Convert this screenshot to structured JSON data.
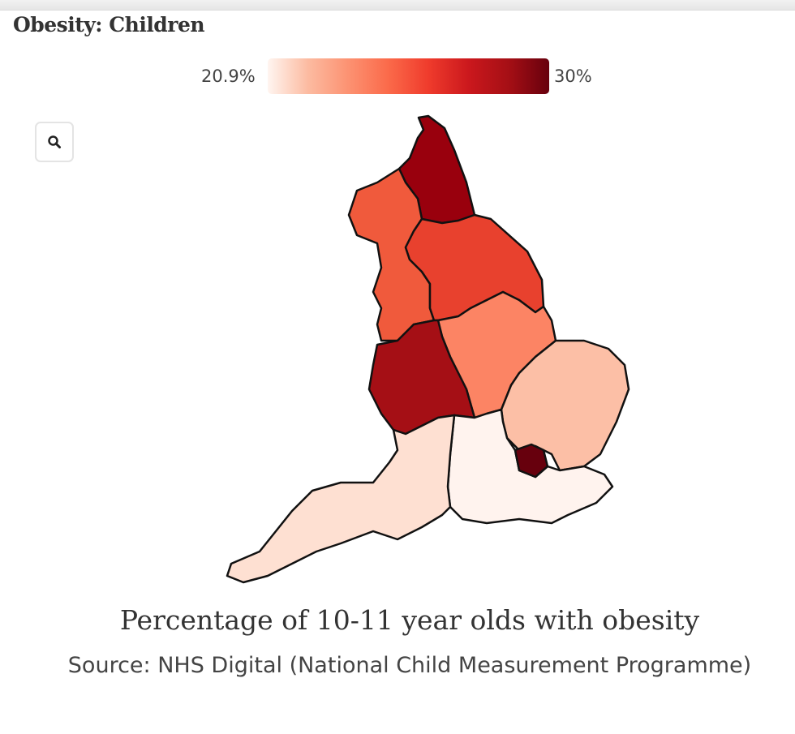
{
  "header": {
    "title": "Obesity: Children"
  },
  "legend": {
    "min_label": "20.9%",
    "max_label": "30%",
    "scale": "Reds"
  },
  "controls": {
    "zoom_icon": "search-icon"
  },
  "map": {
    "regions": [
      {
        "id": "north-east",
        "fill": "#99000d"
      },
      {
        "id": "north-west",
        "fill": "#f05a3c"
      },
      {
        "id": "yorkshire-and-the-humber",
        "fill": "#e8412e"
      },
      {
        "id": "east-midlands",
        "fill": "#fc8464"
      },
      {
        "id": "west-midlands",
        "fill": "#a50f15"
      },
      {
        "id": "east-of-england",
        "fill": "#fcbfa6"
      },
      {
        "id": "london",
        "fill": "#67000d"
      },
      {
        "id": "south-east",
        "fill": "#fff3ee"
      },
      {
        "id": "south-west",
        "fill": "#fee0d2"
      }
    ]
  },
  "caption": "Percentage of 10-11 year olds with obesity",
  "source": "Source: NHS Digital (National Child Measurement Programme)"
}
